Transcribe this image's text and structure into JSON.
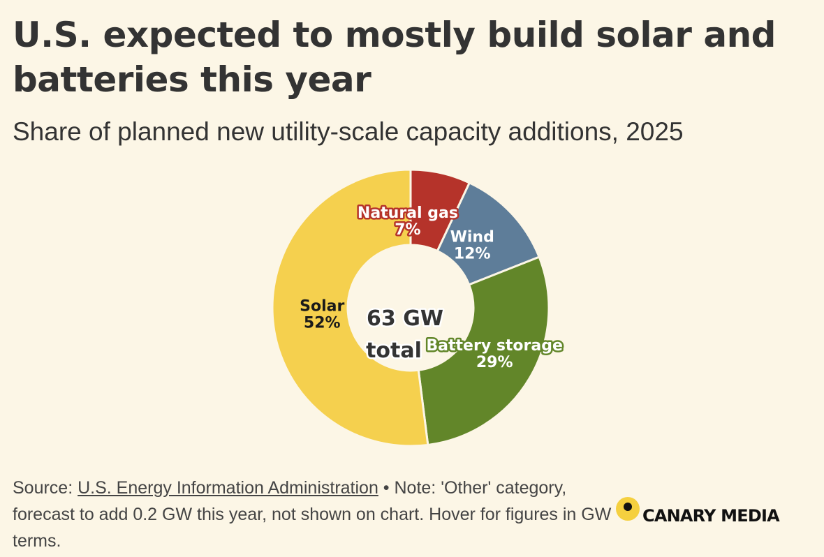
{
  "header": {
    "title": "U.S. expected to mostly build solar and batteries this year",
    "subtitle": "Share of planned new utility-scale capacity additions, 2025"
  },
  "chart_data": {
    "type": "pie",
    "donut": true,
    "title": "U.S. expected to mostly build solar and batteries this year",
    "subtitle": "Share of planned new utility-scale capacity additions, 2025",
    "center_label": [
      "63 GW",
      "total"
    ],
    "unit": "%",
    "slices": [
      {
        "name": "Natural gas",
        "value": 7,
        "label": "7%",
        "color": "#b5332a",
        "label_color": "#ffffff"
      },
      {
        "name": "Wind",
        "value": 12,
        "label": "12%",
        "color": "#5e7d99",
        "label_color": "#ffffff"
      },
      {
        "name": "Battery storage",
        "value": 29,
        "label": "29%",
        "color": "#628629",
        "label_color": "#ffffff"
      },
      {
        "name": "Solar",
        "value": 52,
        "label": "52%",
        "color": "#f5d04e",
        "label_color": "#1a1a1a"
      }
    ]
  },
  "footer": {
    "source_prefix": "Source: ",
    "source_link": "U.S. Energy Information Administration",
    "note": " • Note: 'Other' category, forecast to add 0.2 GW this year, not shown on chart. Hover for figures in GW terms."
  },
  "brand": {
    "name": "CANARY MEDIA",
    "logo_icon": "canary-dot-icon",
    "logo_color": "#f5d03f"
  }
}
